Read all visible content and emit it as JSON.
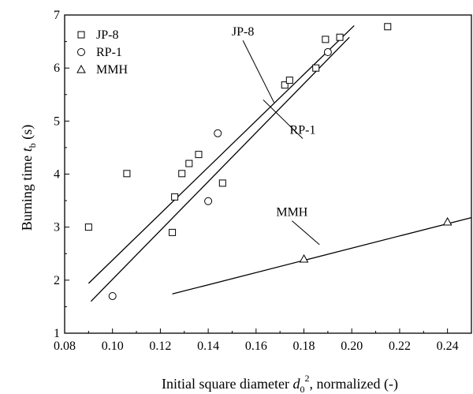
{
  "chart_data": {
    "type": "scatter",
    "xlabel": "Initial square diameter",
    "xlabel_symbol": "d",
    "xlabel_sub": "0",
    "xlabel_sup": "2",
    "xlabel_suffix": ", normalized (-)",
    "ylabel": "Burning time",
    "ylabel_symbol": "t",
    "ylabel_sub": "b",
    "ylabel_suffix": " (s)",
    "xlim": [
      0.08,
      0.25
    ],
    "ylim": [
      1,
      7
    ],
    "xticks": [
      0.08,
      0.1,
      0.12,
      0.14,
      0.16,
      0.18,
      0.2,
      0.22,
      0.24
    ],
    "xtick_labels": [
      "0.08",
      "0.10",
      "0.12",
      "0.14",
      "0.16",
      "0.18",
      "0.20",
      "0.22",
      "0.24"
    ],
    "yticks": [
      1,
      2,
      3,
      4,
      5,
      6,
      7
    ],
    "ytick_labels": [
      "1",
      "2",
      "3",
      "4",
      "5",
      "6",
      "7"
    ],
    "grid": false,
    "legend_position": "top-left",
    "series": [
      {
        "name": "JP-8",
        "marker": "square",
        "points": [
          [
            0.09,
            3.0
          ],
          [
            0.106,
            4.01
          ],
          [
            0.125,
            2.9
          ],
          [
            0.126,
            3.57
          ],
          [
            0.129,
            4.01
          ],
          [
            0.132,
            4.2
          ],
          [
            0.136,
            4.37
          ],
          [
            0.146,
            3.83
          ],
          [
            0.172,
            5.68
          ],
          [
            0.174,
            5.77
          ],
          [
            0.185,
            6.0
          ],
          [
            0.189,
            6.54
          ],
          [
            0.195,
            6.58
          ],
          [
            0.215,
            6.78
          ]
        ]
      },
      {
        "name": "RP-1",
        "marker": "circle",
        "points": [
          [
            0.1,
            1.7
          ],
          [
            0.14,
            3.49
          ],
          [
            0.144,
            4.77
          ],
          [
            0.19,
            6.3
          ]
        ]
      },
      {
        "name": "MMH",
        "marker": "triangle",
        "points": [
          [
            0.18,
            2.4
          ],
          [
            0.24,
            3.1
          ]
        ]
      }
    ],
    "fit_lines": [
      {
        "name": "JP-8",
        "from": [
          0.09,
          1.94
        ],
        "to": [
          0.201,
          6.8
        ]
      },
      {
        "name": "RP-1",
        "from": [
          0.091,
          1.6
        ],
        "to": [
          0.199,
          6.58
        ]
      },
      {
        "name": "MMH",
        "from": [
          0.125,
          1.74
        ],
        "to": [
          0.25,
          3.18
        ]
      }
    ],
    "annotations": [
      {
        "text": "JP-8",
        "anchor": [
          0.1545,
          6.55
        ],
        "target": [
          0.1675,
          5.35
        ]
      },
      {
        "text": "RP-1",
        "anchor": [
          0.1795,
          4.7
        ],
        "target": [
          0.163,
          5.4
        ]
      },
      {
        "text": "MMH",
        "anchor": [
          0.175,
          3.15
        ],
        "target": [
          0.1865,
          2.67
        ]
      }
    ]
  }
}
